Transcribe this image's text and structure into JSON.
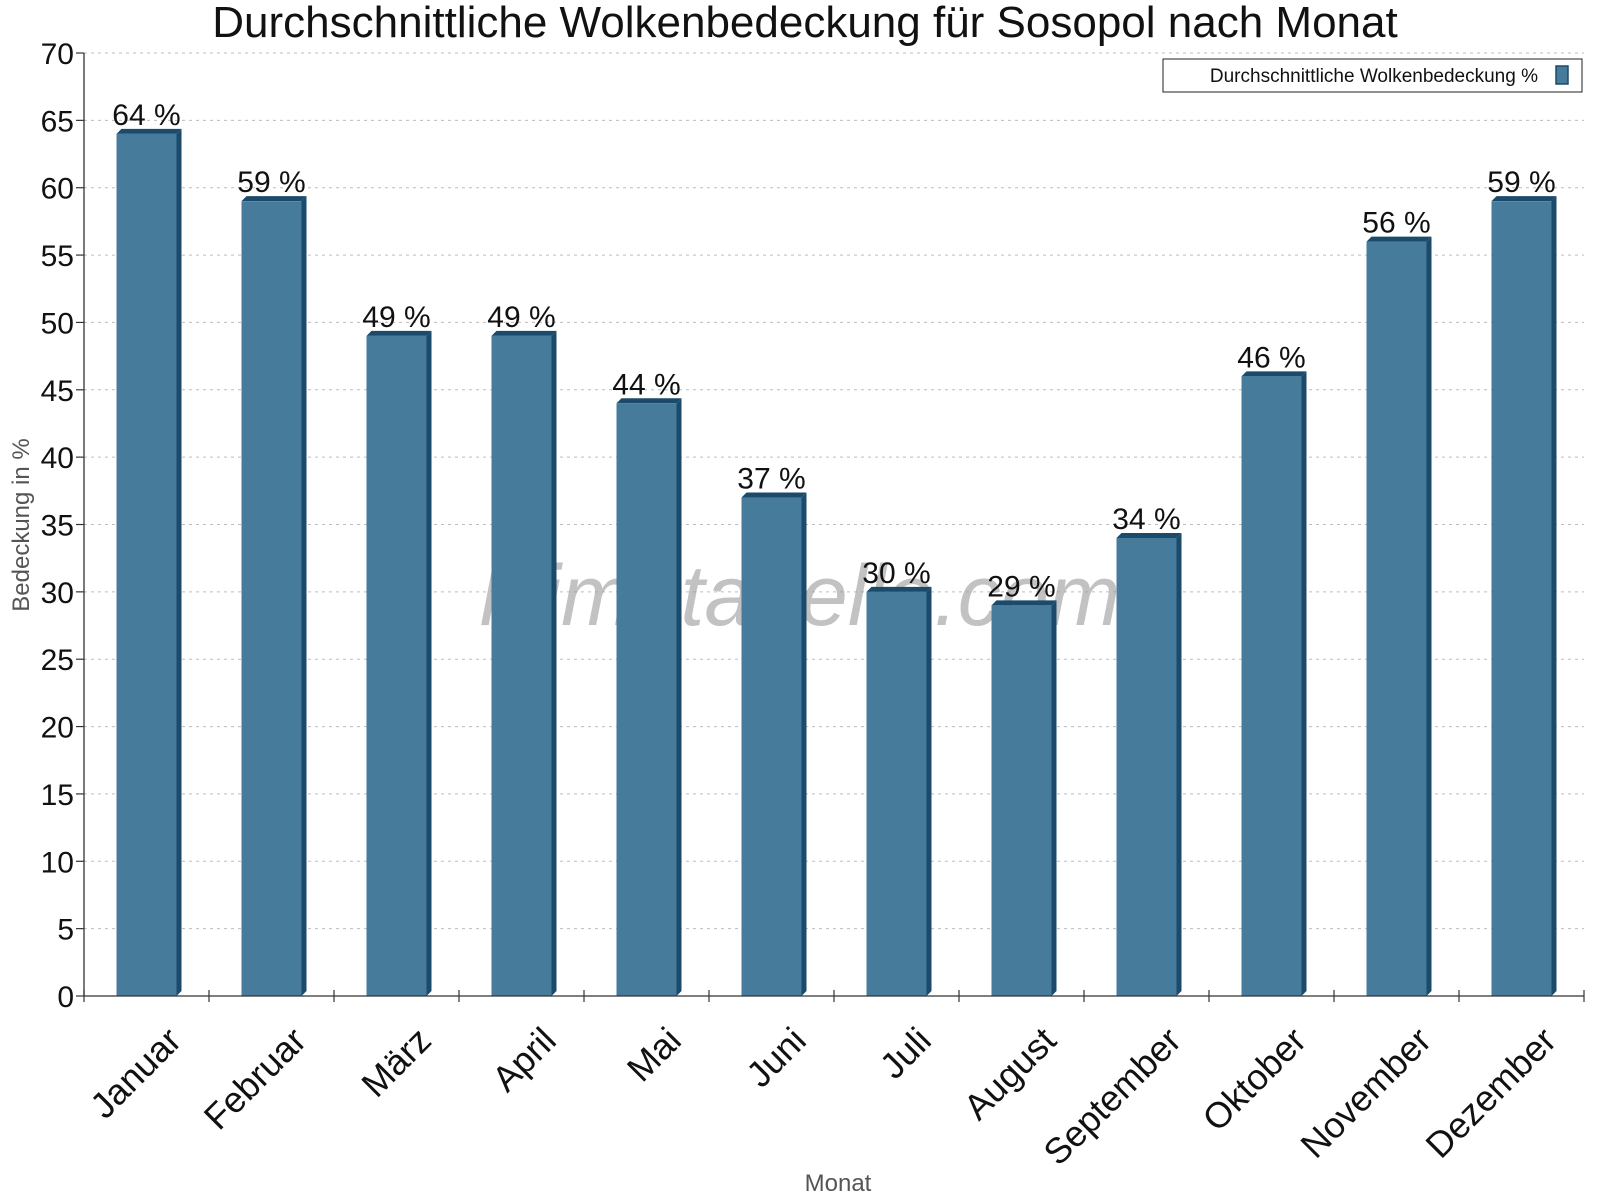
{
  "chart_data": {
    "type": "bar",
    "title": "Durchschnittliche Wolkenbedeckung für Sosopol nach Monat",
    "xlabel": "Monat",
    "ylabel": "Bedeckung in %",
    "categories": [
      "Januar",
      "Februar",
      "März",
      "April",
      "Mai",
      "Juni",
      "Juli",
      "August",
      "September",
      "Oktober",
      "November",
      "Dezember"
    ],
    "series": [
      {
        "name": "Durchschnittliche Wolkenbedeckung %",
        "values": [
          64,
          59,
          49,
          49,
          44,
          37,
          30,
          29,
          34,
          46,
          56,
          59
        ],
        "color": "#467b9c",
        "dark_color": "#1b4a6b"
      }
    ],
    "value_suffix": " %",
    "ylim": [
      0,
      70
    ],
    "ytick_step": 5,
    "grid": true,
    "legend_position": "top-right",
    "watermark": "klimatabelle.com"
  }
}
